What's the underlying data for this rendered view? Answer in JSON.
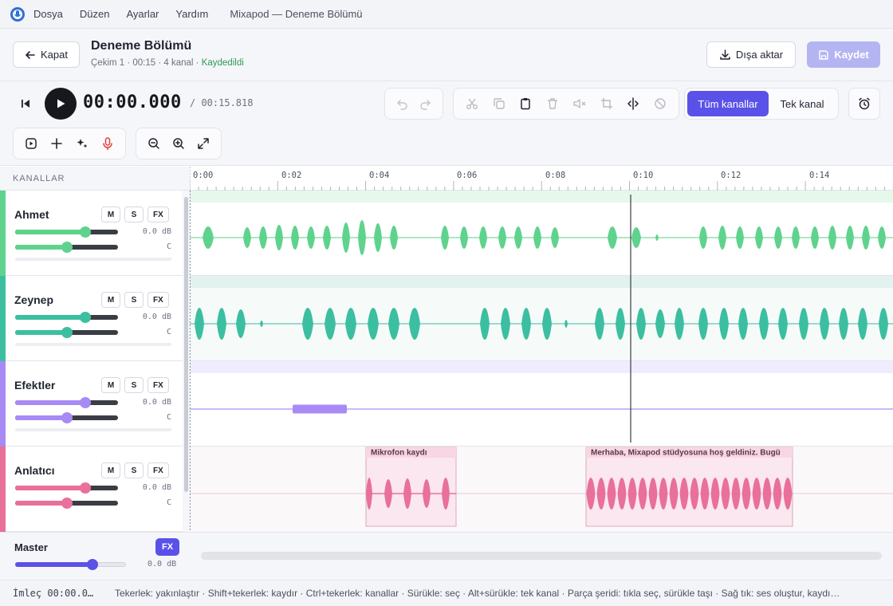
{
  "app": {
    "menu": [
      "Dosya",
      "Düzen",
      "Ayarlar",
      "Yardım"
    ],
    "window_title": "Mixapod — Deneme Bölümü"
  },
  "header": {
    "close_label": "Kapat",
    "project_title": "Deneme Bölümü",
    "meta": "Çekim 1 · 00:15 · 4 kanal · ",
    "saved_status": "Kaydedildi",
    "export_label": "Dışa aktar",
    "save_label": "Kaydet"
  },
  "transport": {
    "current_time": "00:00.000",
    "total_time": "/ 00:15.818"
  },
  "toolbar": {
    "all_channels_label": "Tüm kanallar",
    "single_channel_label": "Tek kanal"
  },
  "channels_header": "KANALLAR",
  "tracks": [
    {
      "name": "Ahmet",
      "color": "#5fd38d",
      "volume_db": "0.0 dB",
      "pan": "C",
      "volume_level": 0.68,
      "pan_level": 0.5
    },
    {
      "name": "Zeynep",
      "color": "#3cbfa0",
      "volume_db": "0.0 dB",
      "pan": "C",
      "volume_level": 0.68,
      "pan_level": 0.5
    },
    {
      "name": "Efektler",
      "color": "#a88af5",
      "volume_db": "0.0 dB",
      "pan": "C",
      "volume_level": 0.68,
      "pan_level": 0.5
    },
    {
      "name": "Anlatıcı",
      "color": "#e8709a",
      "volume_db": "0.0 dB",
      "pan": "C",
      "volume_level": 0.68,
      "pan_level": 0.5
    }
  ],
  "track_buttons": {
    "mute": "M",
    "solo": "S",
    "fx": "FX"
  },
  "master": {
    "label": "Master",
    "fx_label": "FX",
    "volume_db": "0.0 dB",
    "volume_level": 0.69
  },
  "ruler": {
    "labels": [
      "0:00",
      "0:02",
      "0:04",
      "0:06",
      "0:08",
      "0:10",
      "0:12",
      "0:14"
    ]
  },
  "clips": [
    {
      "label": "Mikrofon kaydı"
    },
    {
      "label": "Merhaba, Mixapod stüdyosuna hoş geldiniz. Bugü"
    }
  ],
  "status": {
    "cursor": "İmleç 00:00.0…",
    "hints": "Tekerlek: yakınlaştır · Shift+tekerlek: kaydır · Ctrl+tekerlek: kanallar · Sürükle: seç · Alt+sürükle: tek kanal · Parça şeridi: tıkla seç, sürükle taşı · Sağ tık: ses oluştur, kaydı…"
  }
}
